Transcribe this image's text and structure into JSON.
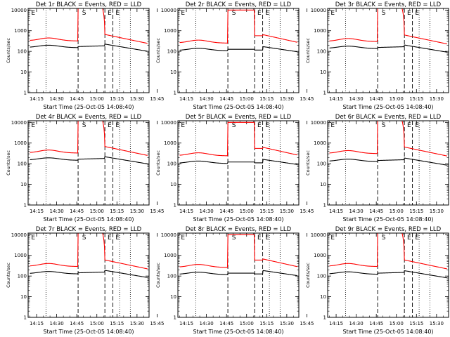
{
  "layout": {
    "rows": 3,
    "cols": 3
  },
  "styles": {
    "events_color": "#000000",
    "lld_color": "#ff0000",
    "background": "#ffffff"
  },
  "shared": {
    "ylabel": "Counts/sec",
    "xlabel": "Start Time (25-Oct-05 14:08:40)",
    "x_tick_labels": [
      "14:15",
      "14:30",
      "14:45",
      "15:00",
      "15:15",
      "15:30",
      "15:45"
    ],
    "y_tick_labels": [
      "1",
      "10",
      "100",
      "1000",
      "10000"
    ],
    "xlim_min": [
      8.67,
      99
    ],
    "ylim": [
      1,
      12000
    ],
    "yscale": "log",
    "x_ticks_min": [
      15,
      30,
      45,
      60,
      75,
      90,
      105
    ],
    "dotted_lines_min": [
      22,
      77,
      85
    ],
    "dashed_lines_min": [
      46,
      66,
      72
    ],
    "interval_marks": [
      {
        "label": "E",
        "t_min": 11
      },
      {
        "label": "S",
        "t_min": 49
      },
      {
        "label": "E",
        "t_min": 68
      },
      {
        "label": "E",
        "t_min": 74
      }
    ]
  },
  "chart_data": [
    {
      "type": "line",
      "title": "Det 1r BLACK = Events, RED = LLD",
      "profile": "sat",
      "events_base": 155,
      "lld_base": 330,
      "series": [
        {
          "name": "Events"
        },
        {
          "name": "LLD"
        }
      ]
    },
    {
      "type": "line",
      "title": "Det 2r BLACK = Events, RED = LLD",
      "profile": "notch",
      "events_base": 110,
      "lld_base": 260,
      "series": [
        {
          "name": "Events"
        },
        {
          "name": "LLD"
        }
      ]
    },
    {
      "type": "line",
      "title": "Det 3r BLACK = Events, RED = LLD",
      "profile": "sat",
      "events_base": 140,
      "lld_base": 310,
      "series": [
        {
          "name": "Events"
        },
        {
          "name": "LLD"
        }
      ]
    },
    {
      "type": "line",
      "title": "Det 4r BLACK = Events, RED = LLD",
      "profile": "sat",
      "events_base": 150,
      "lld_base": 340,
      "series": [
        {
          "name": "Events"
        },
        {
          "name": "LLD"
        }
      ]
    },
    {
      "type": "line",
      "title": "Det 5r BLACK = Events, RED = LLD",
      "profile": "notch",
      "events_base": 105,
      "lld_base": 250,
      "series": [
        {
          "name": "Events"
        },
        {
          "name": "LLD"
        }
      ]
    },
    {
      "type": "line",
      "title": "Det 6r BLACK = Events, RED = LLD",
      "profile": "sat",
      "events_base": 130,
      "lld_base": 320,
      "series": [
        {
          "name": "Events"
        },
        {
          "name": "LLD"
        }
      ]
    },
    {
      "type": "line",
      "title": "Det 7r BLACK = Events, RED = LLD",
      "profile": "sat",
      "events_base": 130,
      "lld_base": 300,
      "series": [
        {
          "name": "Events"
        },
        {
          "name": "LLD"
        }
      ]
    },
    {
      "type": "line",
      "title": "Det 8r BLACK = Events, RED = LLD",
      "profile": "notch",
      "events_base": 120,
      "lld_base": 270,
      "series": [
        {
          "name": "Events"
        },
        {
          "name": "LLD"
        }
      ]
    },
    {
      "type": "line",
      "title": "Det 9r BLACK = Events, RED = LLD",
      "profile": "sat",
      "events_base": 125,
      "lld_base": 300,
      "series": [
        {
          "name": "Events"
        },
        {
          "name": "LLD"
        }
      ]
    }
  ]
}
